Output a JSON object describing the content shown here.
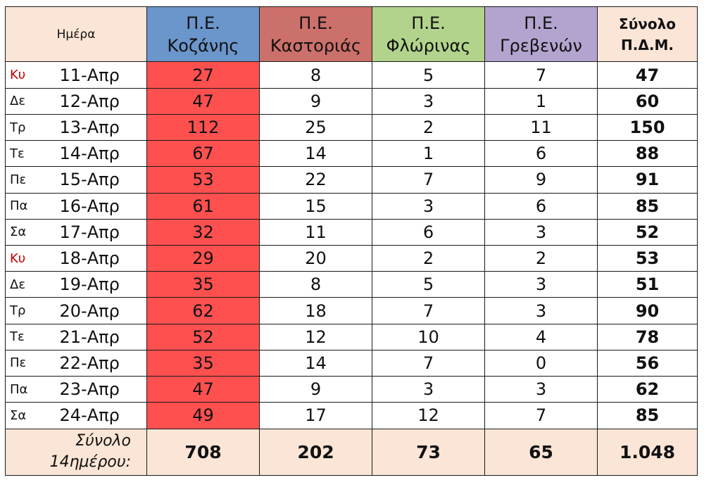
{
  "header": {
    "day": "Ημέρα",
    "units": [
      {
        "line1": "Π.Ε.",
        "line2": "Κοζάνης"
      },
      {
        "line1": "Π.Ε.",
        "line2": "Καστοριάς"
      },
      {
        "line1": "Π.Ε.",
        "line2": "Φλώρινας"
      },
      {
        "line1": "Π.Ε.",
        "line2": "Γρεβενών"
      }
    ],
    "total_line1": "Σύνολο",
    "total_line2": "Π.Δ.Μ."
  },
  "rows": [
    {
      "day": "Κυ",
      "date": "11-Απρ",
      "koz": "27",
      "kas": "8",
      "flo": "5",
      "gre": "7",
      "total": "47"
    },
    {
      "day": "Δε",
      "date": "12-Απρ",
      "koz": "47",
      "kas": "9",
      "flo": "3",
      "gre": "1",
      "total": "60"
    },
    {
      "day": "Τρ",
      "date": "13-Απρ",
      "koz": "112",
      "kas": "25",
      "flo": "2",
      "gre": "11",
      "total": "150"
    },
    {
      "day": "Τε",
      "date": "14-Απρ",
      "koz": "67",
      "kas": "14",
      "flo": "1",
      "gre": "6",
      "total": "88"
    },
    {
      "day": "Πε",
      "date": "15-Απρ",
      "koz": "53",
      "kas": "22",
      "flo": "7",
      "gre": "9",
      "total": "91"
    },
    {
      "day": "Πα",
      "date": "16-Απρ",
      "koz": "61",
      "kas": "15",
      "flo": "3",
      "gre": "6",
      "total": "85"
    },
    {
      "day": "Σα",
      "date": "17-Απρ",
      "koz": "32",
      "kas": "11",
      "flo": "6",
      "gre": "3",
      "total": "52"
    },
    {
      "day": "Κυ",
      "date": "18-Απρ",
      "koz": "29",
      "kas": "20",
      "flo": "2",
      "gre": "2",
      "total": "53"
    },
    {
      "day": "Δε",
      "date": "19-Απρ",
      "koz": "35",
      "kas": "8",
      "flo": "5",
      "gre": "3",
      "total": "51"
    },
    {
      "day": "Τρ",
      "date": "20-Απρ",
      "koz": "62",
      "kas": "18",
      "flo": "7",
      "gre": "3",
      "total": "90"
    },
    {
      "day": "Τε",
      "date": "21-Απρ",
      "koz": "52",
      "kas": "12",
      "flo": "10",
      "gre": "4",
      "total": "78"
    },
    {
      "day": "Πε",
      "date": "22-Απρ",
      "koz": "35",
      "kas": "14",
      "flo": "7",
      "gre": "0",
      "total": "56"
    },
    {
      "day": "Πα",
      "date": "23-Απρ",
      "koz": "47",
      "kas": "9",
      "flo": "3",
      "gre": "3",
      "total": "62"
    },
    {
      "day": "Σα",
      "date": "24-Απρ",
      "koz": "49",
      "kas": "17",
      "flo": "12",
      "gre": "7",
      "total": "85"
    }
  ],
  "footer": {
    "label_line1": "Σύνολο",
    "label_line2": "14ημέρου:",
    "koz": "708",
    "kas": "202",
    "flo": "73",
    "gre": "65",
    "total": "1.048"
  },
  "colors": {
    "kozani_header": "#6b96cb",
    "kastoria_header": "#cc706b",
    "florina_header": "#b2d38b",
    "grevena_header": "#b3a4cf",
    "kozani_cells": "#ff5050",
    "peach": "#fbe5d6",
    "sunday_text": "#c00000"
  }
}
